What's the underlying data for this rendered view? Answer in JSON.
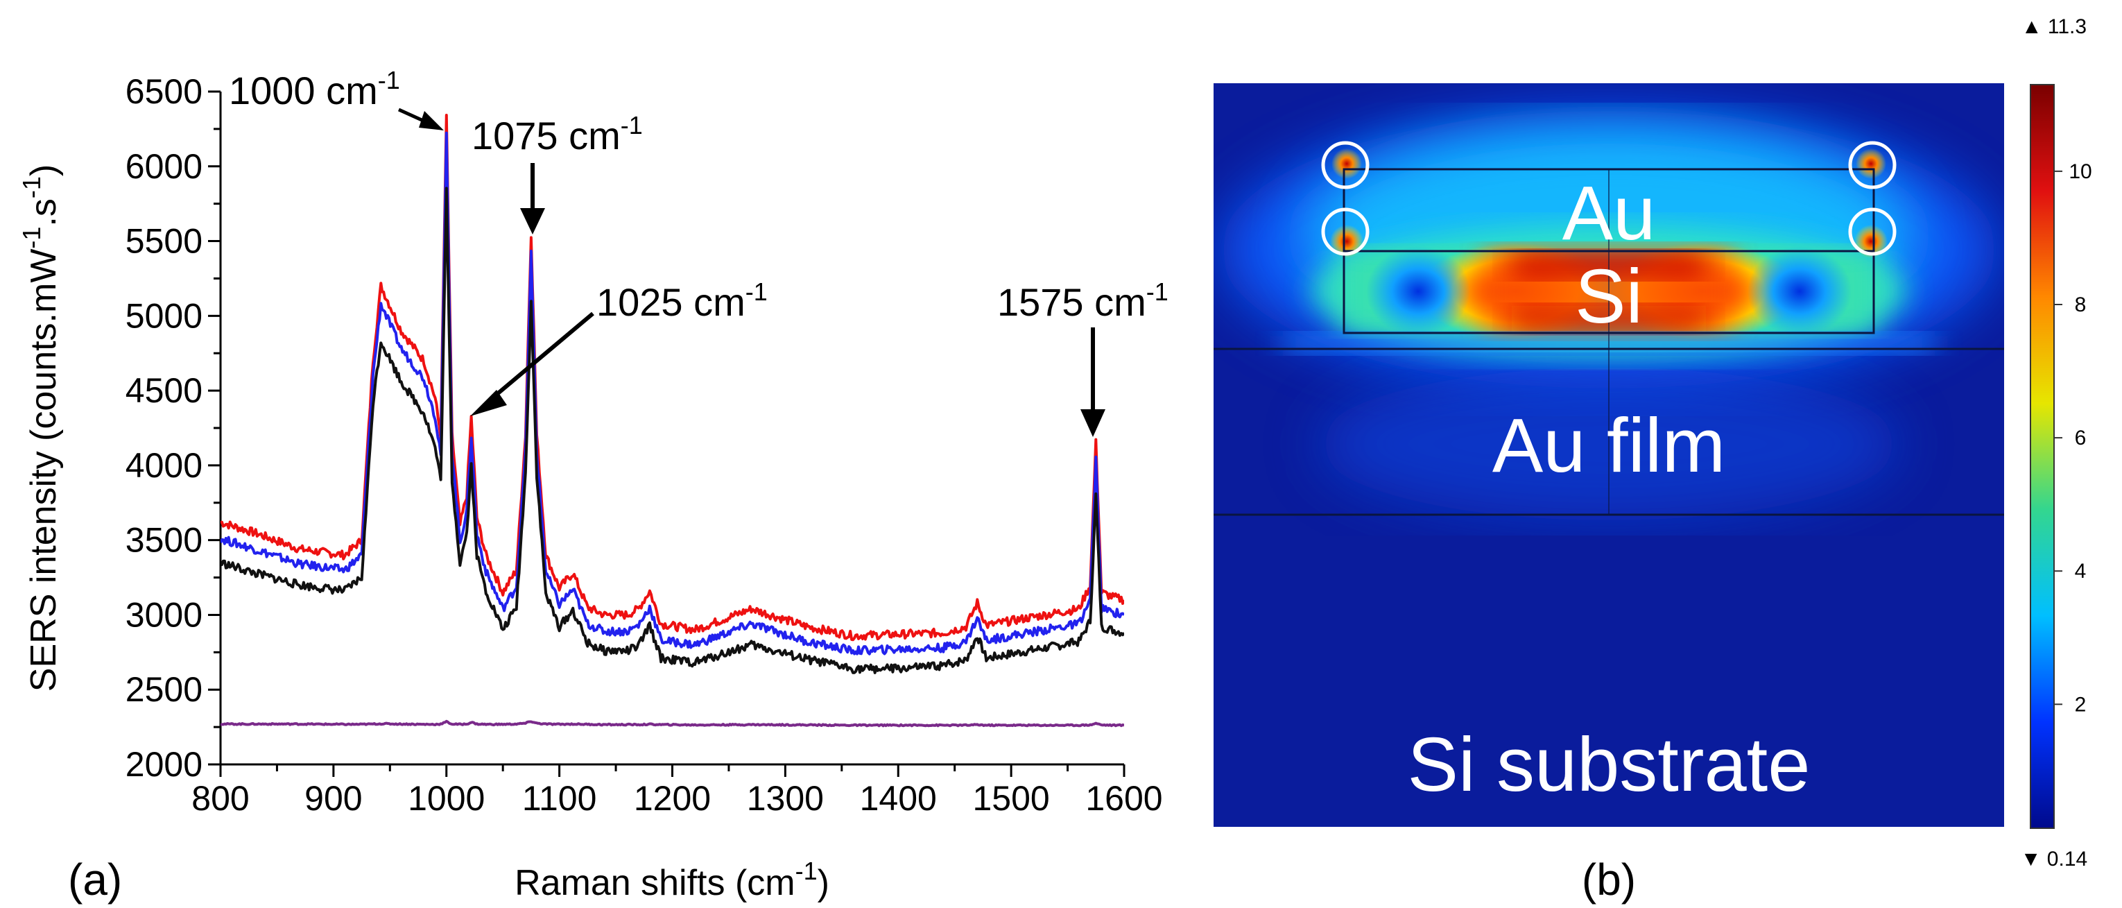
{
  "panel_a": {
    "label": "(a)",
    "chart_data": {
      "type": "line",
      "title": "",
      "xlabel": "Raman shifts (cm",
      "xlabel_sup": "-1",
      "xlabel_end": ")",
      "ylabel": "SERS intensity (counts.mW",
      "ylabel_sup1": "-1",
      "ylabel_mid": ".s",
      "ylabel_sup2": "-1",
      "ylabel_end": ")",
      "xlim": [
        800,
        1600
      ],
      "ylim": [
        2000,
        6500
      ],
      "xticks": [
        "800",
        "900",
        "1000",
        "1100",
        "1200",
        "1300",
        "1400",
        "1500",
        "1600"
      ],
      "yticks": [
        "2000",
        "2500",
        "3000",
        "3500",
        "4000",
        "4500",
        "5000",
        "5500",
        "6000",
        "6500"
      ],
      "x": [
        800,
        830,
        870,
        910,
        925,
        935,
        942,
        960,
        980,
        990,
        995,
        1000,
        1005,
        1012,
        1018,
        1022,
        1027,
        1035,
        1050,
        1062,
        1070,
        1075,
        1080,
        1088,
        1100,
        1112,
        1125,
        1140,
        1160,
        1170,
        1180,
        1190,
        1220,
        1270,
        1320,
        1360,
        1400,
        1440,
        1460,
        1470,
        1478,
        1500,
        1530,
        1560,
        1570,
        1575,
        1580,
        1590,
        1600
      ],
      "series": [
        {
          "name": "red",
          "color": "#ee1111",
          "values": [
            3620,
            3550,
            3440,
            3400,
            3500,
            4700,
            5200,
            4900,
            4700,
            4450,
            4200,
            6320,
            4200,
            3600,
            3800,
            4320,
            3650,
            3400,
            3150,
            3300,
            4200,
            5550,
            4200,
            3400,
            3180,
            3280,
            3050,
            3000,
            3000,
            3040,
            3160,
            2940,
            2900,
            3040,
            2920,
            2860,
            2870,
            2880,
            2920,
            3080,
            2930,
            2960,
            3000,
            3040,
            3200,
            4150,
            3150,
            3120,
            3100
          ]
        },
        {
          "name": "blue",
          "color": "#2222ee",
          "values": [
            3510,
            3440,
            3340,
            3300,
            3400,
            4600,
            5080,
            4780,
            4580,
            4330,
            4080,
            6200,
            4080,
            3490,
            3690,
            4200,
            3540,
            3290,
            3040,
            3190,
            4090,
            5420,
            4090,
            3290,
            3070,
            3170,
            2940,
            2890,
            2890,
            2930,
            3050,
            2830,
            2800,
            2940,
            2820,
            2760,
            2770,
            2780,
            2820,
            2980,
            2830,
            2860,
            2900,
            2940,
            3100,
            4040,
            3040,
            3020,
            3000
          ]
        },
        {
          "name": "black",
          "color": "#111111",
          "values": [
            3350,
            3280,
            3200,
            3160,
            3250,
            4420,
            4830,
            4560,
            4350,
            4120,
            3900,
            5830,
            3900,
            3350,
            3550,
            4000,
            3400,
            3160,
            2900,
            3050,
            3940,
            5100,
            3940,
            3140,
            2920,
            3030,
            2810,
            2760,
            2760,
            2790,
            2930,
            2710,
            2680,
            2800,
            2700,
            2640,
            2640,
            2660,
            2700,
            2860,
            2710,
            2740,
            2780,
            2820,
            2960,
            3800,
            2920,
            2900,
            2880
          ]
        },
        {
          "name": "purple",
          "color": "#7a2a8a",
          "values": [
            2270,
            2270,
            2270,
            2268,
            2268,
            2270,
            2272,
            2270,
            2268,
            2268,
            2270,
            2285,
            2270,
            2268,
            2270,
            2282,
            2270,
            2268,
            2268,
            2270,
            2275,
            2288,
            2275,
            2270,
            2268,
            2270,
            2268,
            2266,
            2266,
            2266,
            2268,
            2266,
            2264,
            2266,
            2264,
            2262,
            2262,
            2262,
            2262,
            2265,
            2262,
            2262,
            2262,
            2262,
            2264,
            2275,
            2264,
            2262,
            2262
          ]
        }
      ],
      "annotations": [
        {
          "text": "1000 cm",
          "sup": "-1",
          "x": 1000
        },
        {
          "text": "1075 cm",
          "sup": "-1",
          "x": 1075
        },
        {
          "text": "1025 cm",
          "sup": "-1",
          "x": 1025
        },
        {
          "text": "1575 cm",
          "sup": "-1",
          "x": 1575
        }
      ]
    }
  },
  "panel_b": {
    "label": "(b)",
    "regions": {
      "au": "Au",
      "si": "Si",
      "au_film": "Au film",
      "substrate": "Si substrate"
    },
    "colorbar": {
      "max_label": "▲ 11.3",
      "min_label": "▼ 0.14",
      "min": 0.14,
      "max": 11.3,
      "ticks": [
        "2",
        "4",
        "6",
        "8",
        "10"
      ],
      "tick_values": [
        2,
        4,
        6,
        8,
        10
      ],
      "colors": [
        "#000a8c",
        "#0033ff",
        "#00bfff",
        "#33d68f",
        "#e6e600",
        "#ff8800",
        "#e01010",
        "#7a0000"
      ]
    }
  }
}
